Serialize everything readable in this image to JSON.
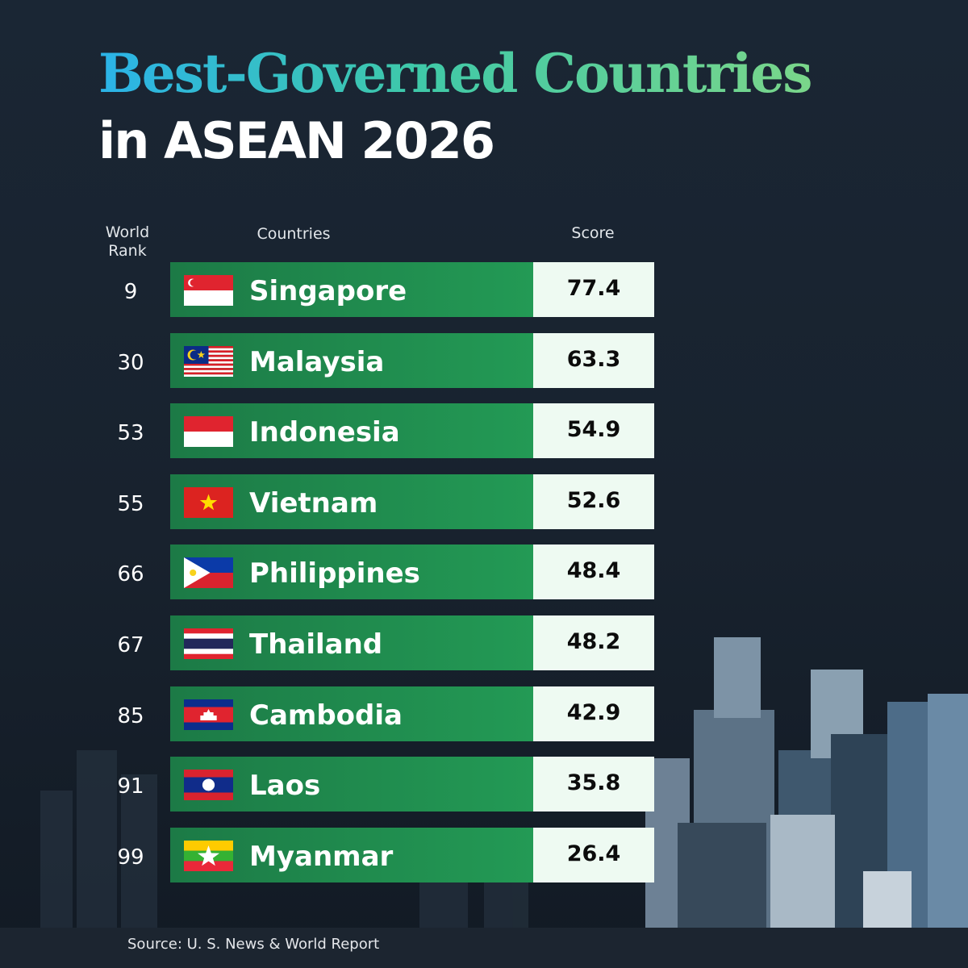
{
  "header": {
    "title_line1": "Best-Governed Countries",
    "title_line2": "in ASEAN 2026"
  },
  "table": {
    "columns": [
      "World Rank",
      "Countries",
      "Score"
    ],
    "rows": [
      [
        "9",
        "Singapore",
        "77.4"
      ],
      [
        "30",
        "Malaysia",
        "63.3"
      ],
      [
        "53",
        "Indonesia",
        "54.9"
      ],
      [
        "55",
        "Vietnam",
        "52.6"
      ],
      [
        "66",
        "Philippines",
        "48.4"
      ],
      [
        "67",
        "Thailand",
        "48.2"
      ],
      [
        "85",
        "Cambodia",
        "42.9"
      ],
      [
        "91",
        "Laos",
        "35.8"
      ],
      [
        "99",
        "Myanmar",
        "26.4"
      ]
    ]
  },
  "footer": {
    "source": "Source: U. S. News & World Report"
  }
}
